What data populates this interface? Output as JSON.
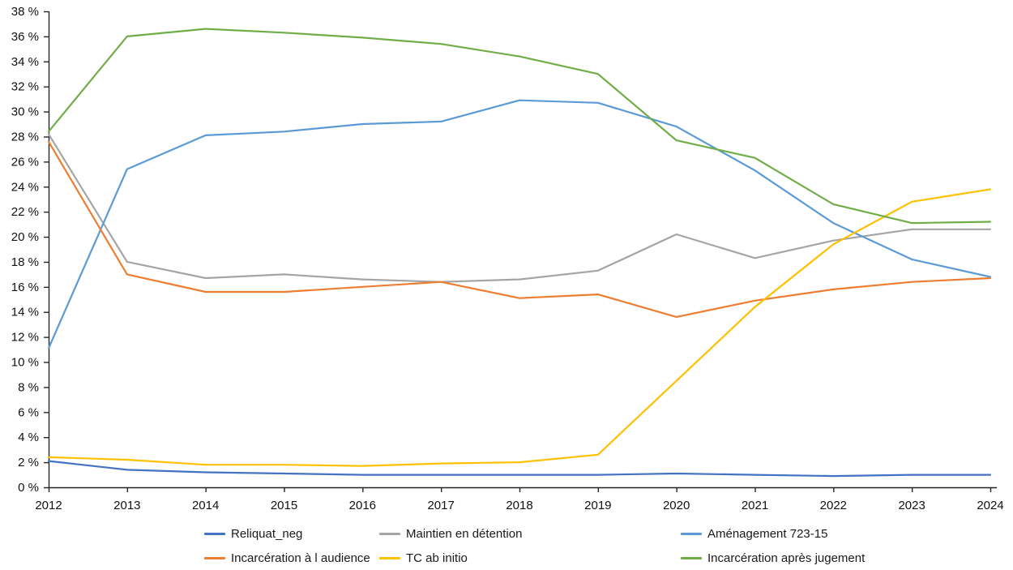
{
  "chart_data": {
    "type": "line",
    "title": "",
    "xlabel": "",
    "ylabel": "",
    "x": [
      2012,
      2013,
      2014,
      2015,
      2016,
      2017,
      2018,
      2019,
      2020,
      2021,
      2022,
      2023,
      2024
    ],
    "ylim": [
      0,
      38
    ],
    "ytick_step": 2,
    "ytick_suffix": " %",
    "grid": false,
    "legend_position": "bottom",
    "axis_color": "#262626",
    "series": [
      {
        "name": "Reliquat_neg",
        "color": "#4472C4",
        "values": [
          2.1,
          1.4,
          1.2,
          1.1,
          1.0,
          1.0,
          1.0,
          1.0,
          1.1,
          1.0,
          0.9,
          1.0,
          1.0
        ]
      },
      {
        "name": "Maintien en détention",
        "color": "#A5A5A5",
        "values": [
          28.2,
          18.0,
          16.7,
          17.0,
          16.6,
          16.4,
          16.6,
          17.3,
          20.2,
          18.3,
          19.7,
          20.6,
          20.6
        ]
      },
      {
        "name": "Aménagement 723-15",
        "color": "#5B9BD5",
        "values": [
          11.1,
          25.4,
          28.1,
          28.4,
          29.0,
          29.2,
          30.9,
          30.7,
          28.8,
          25.3,
          21.1,
          18.2,
          16.8
        ]
      },
      {
        "name": "Incarcération à l audience",
        "color": "#ED7D31",
        "values": [
          27.6,
          17.0,
          15.6,
          15.6,
          16.0,
          16.4,
          15.1,
          15.4,
          13.6,
          14.9,
          15.8,
          16.4,
          16.7
        ]
      },
      {
        "name": "TC ab initio",
        "color": "#FFC000",
        "values": [
          2.4,
          2.2,
          1.8,
          1.8,
          1.7,
          1.9,
          2.0,
          2.6,
          8.5,
          14.4,
          19.4,
          22.8,
          23.8
        ]
      },
      {
        "name": "Incarcération après jugement",
        "color": "#70AD47",
        "values": [
          28.4,
          36.0,
          36.6,
          36.3,
          35.9,
          35.4,
          34.4,
          33.0,
          27.7,
          26.3,
          22.6,
          21.1,
          21.2
        ]
      }
    ]
  }
}
